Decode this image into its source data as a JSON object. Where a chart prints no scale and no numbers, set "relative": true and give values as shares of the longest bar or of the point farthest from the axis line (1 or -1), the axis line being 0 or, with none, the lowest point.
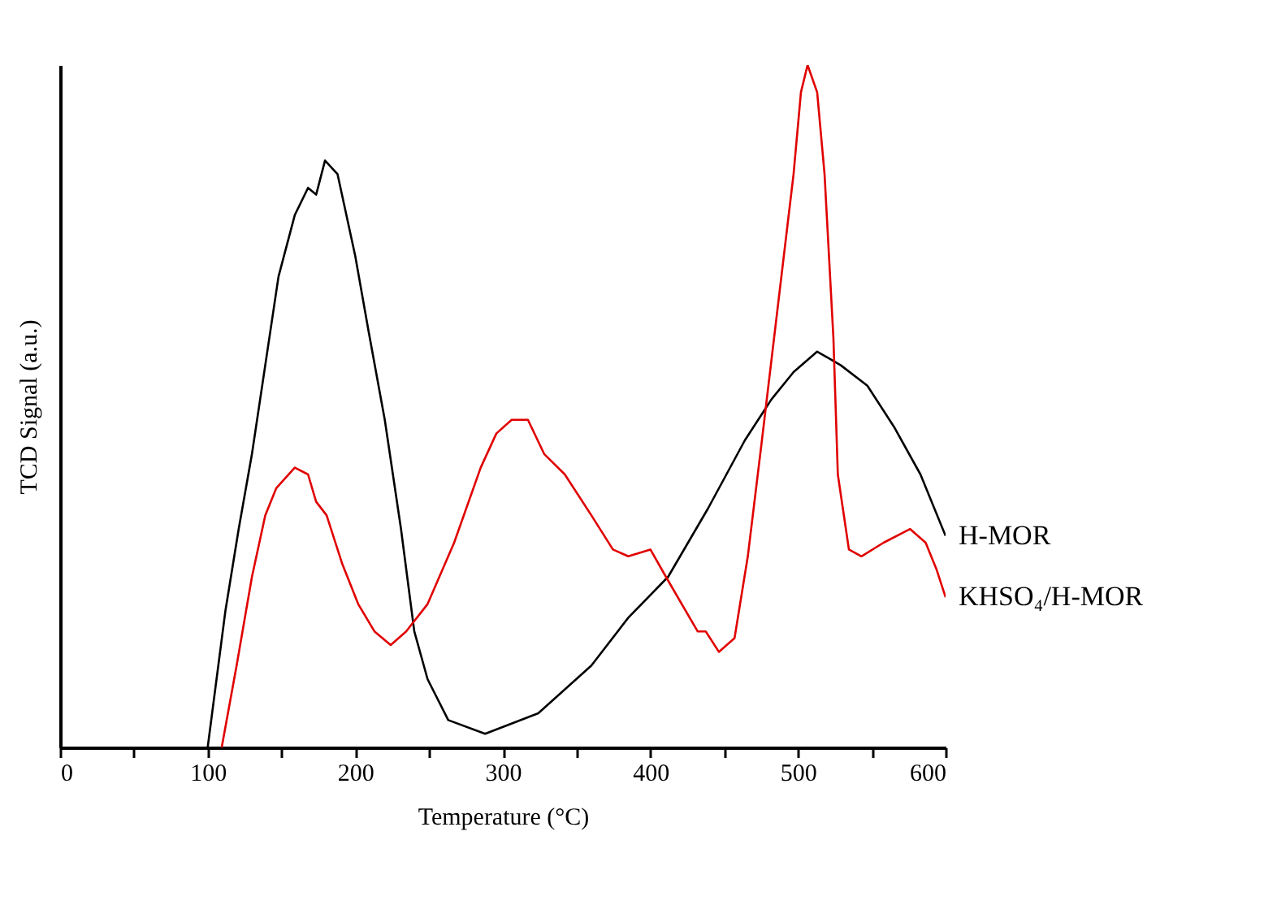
{
  "chart_data": {
    "type": "line",
    "xlabel": "Temperature (°C)",
    "ylabel": "TCD Signal (a.u.)",
    "relative": true,
    "legend": false,
    "grid": false,
    "xlim": [
      0,
      600
    ],
    "xticks": [
      0,
      {
        "value": 50,
        "label": null
      },
      100,
      {
        "value": 150,
        "label": null
      },
      200,
      {
        "value": 250,
        "label": null
      },
      300,
      {
        "value": 350,
        "label": null
      },
      400,
      {
        "value": 450,
        "label": null
      },
      500,
      {
        "value": 550,
        "label": null
      },
      600
    ],
    "series": [
      {
        "name": "H-MOR",
        "color": "#000000",
        "x": [
          100,
          112,
          121,
          130,
          139,
          148,
          159,
          168,
          173.5,
          179.5,
          188,
          200,
          209,
          220,
          231,
          240,
          249,
          263,
          288,
          324,
          360,
          385,
          412,
          439,
          464,
          482,
          497,
          513,
          529,
          547,
          565,
          583,
          600
        ],
        "values": [
          0,
          0.2,
          0.32,
          0.43,
          0.56,
          0.69,
          0.78,
          0.82,
          0.81,
          0.86,
          0.84,
          0.72,
          0.61,
          0.48,
          0.32,
          0.17,
          0.1,
          0.04,
          0.02,
          0.05,
          0.12,
          0.19,
          0.25,
          0.35,
          0.45,
          0.51,
          0.55,
          0.58,
          0.56,
          0.53,
          0.47,
          0.4,
          0.31
        ]
      },
      {
        "name": "KHSO₄/H-MOR",
        "color": "#e00000",
        "x": [
          109.5,
          119.6,
          130,
          139,
          146.5,
          159,
          168,
          173.5,
          180.6,
          191,
          202,
          213,
          224,
          234.5,
          249,
          267,
          285,
          295.6,
          306,
          317,
          328,
          342,
          360,
          374.6,
          385,
          400,
          410.5,
          432,
          437.5,
          446.4,
          457,
          466,
          475,
          486,
          497,
          502,
          506.5,
          513,
          518,
          524,
          527,
          534.5,
          543,
          558,
          576,
          586.5,
          594,
          600
        ],
        "values": [
          0,
          0.12,
          0.25,
          0.34,
          0.38,
          0.41,
          0.4,
          0.36,
          0.34,
          0.27,
          0.21,
          0.17,
          0.15,
          0.17,
          0.21,
          0.3,
          0.41,
          0.46,
          0.48,
          0.48,
          0.43,
          0.4,
          0.34,
          0.29,
          0.28,
          0.29,
          0.25,
          0.17,
          0.17,
          0.14,
          0.16,
          0.28,
          0.44,
          0.64,
          0.84,
          0.96,
          1,
          0.96,
          0.84,
          0.6,
          0.4,
          0.29,
          0.28,
          0.3,
          0.32,
          0.3,
          0.26,
          0.22
        ]
      }
    ]
  }
}
